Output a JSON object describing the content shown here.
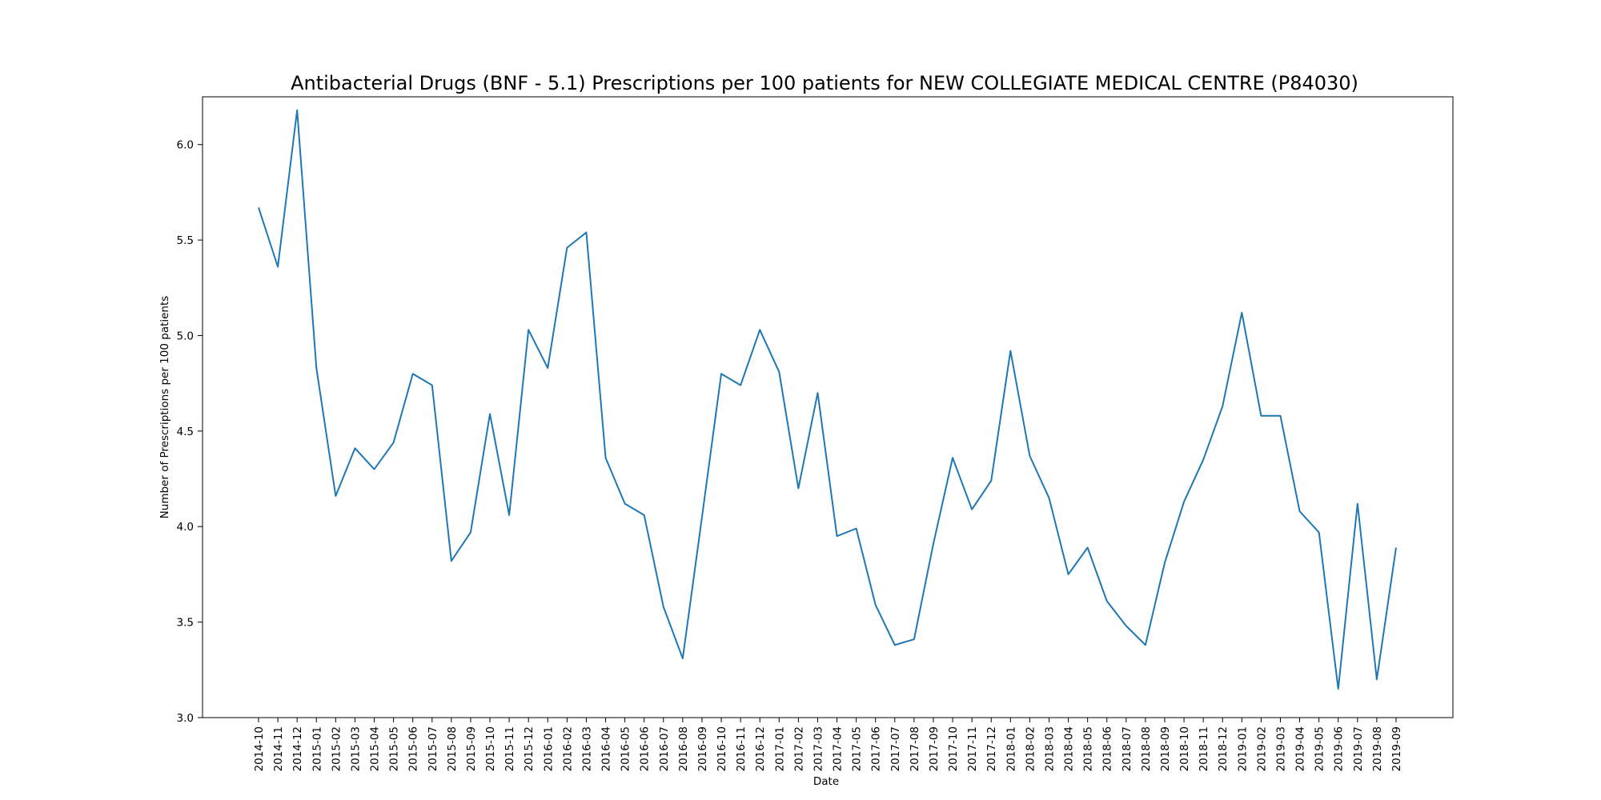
{
  "chart_data": {
    "type": "line",
    "title": "Antibacterial Drugs (BNF - 5.1) Prescriptions per 100 patients for NEW COLLEGIATE MEDICAL CENTRE (P84030)",
    "xlabel": "Date",
    "ylabel": "Number of Prescriptions per 100 patients",
    "ylim": [
      3.0,
      6.25
    ],
    "yticks": [
      "3.0",
      "3.5",
      "4.0",
      "4.5",
      "5.0",
      "5.5",
      "6.0"
    ],
    "grid": false,
    "line_color": "#1f77b4",
    "x": [
      "2014-10",
      "2014-11",
      "2014-12",
      "2015-01",
      "2015-02",
      "2015-03",
      "2015-04",
      "2015-05",
      "2015-06",
      "2015-07",
      "2015-08",
      "2015-09",
      "2015-10",
      "2015-11",
      "2015-12",
      "2016-01",
      "2016-02",
      "2016-03",
      "2016-04",
      "2016-05",
      "2016-06",
      "2016-07",
      "2016-08",
      "2016-09",
      "2016-10",
      "2016-11",
      "2016-12",
      "2017-01",
      "2017-02",
      "2017-03",
      "2017-04",
      "2017-05",
      "2017-06",
      "2017-07",
      "2017-08",
      "2017-09",
      "2017-10",
      "2017-11",
      "2017-12",
      "2018-01",
      "2018-02",
      "2018-03",
      "2018-04",
      "2018-05",
      "2018-06",
      "2018-07",
      "2018-08",
      "2018-09",
      "2018-10",
      "2018-11",
      "2018-12",
      "2019-01",
      "2019-02",
      "2019-03",
      "2019-04",
      "2019-05",
      "2019-06",
      "2019-07",
      "2019-08",
      "2019-09"
    ],
    "values": [
      5.67,
      5.36,
      6.18,
      4.83,
      4.16,
      4.41,
      4.3,
      4.44,
      4.8,
      4.74,
      3.82,
      3.97,
      4.59,
      4.06,
      5.03,
      4.83,
      5.46,
      5.54,
      4.36,
      4.12,
      4.06,
      3.58,
      3.31,
      4.05,
      4.8,
      4.74,
      5.03,
      4.81,
      4.2,
      4.7,
      3.95,
      3.99,
      3.59,
      3.38,
      3.41,
      3.91,
      4.36,
      4.09,
      4.24,
      4.92,
      4.37,
      4.15,
      3.75,
      3.89,
      3.61,
      3.48,
      3.38,
      3.81,
      4.13,
      4.35,
      4.63,
      5.12,
      4.58,
      4.58,
      4.08,
      3.97,
      3.15,
      4.12,
      3.2,
      3.89
    ]
  }
}
